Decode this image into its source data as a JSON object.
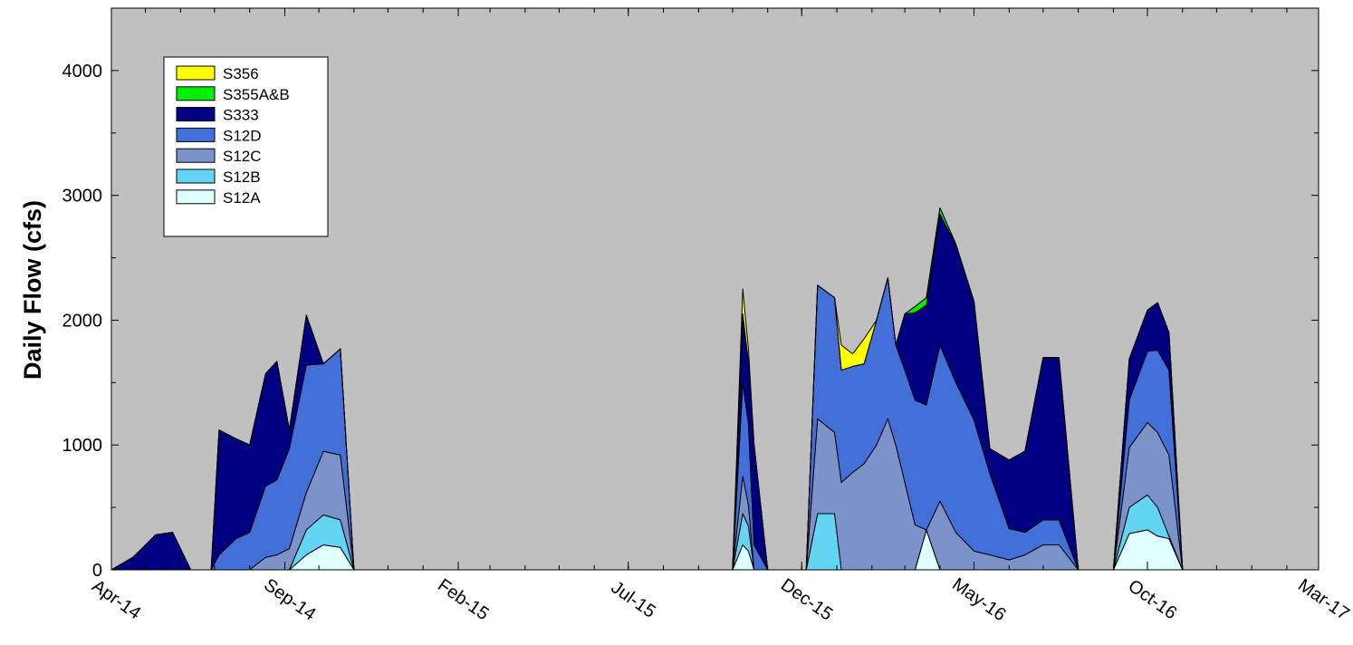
{
  "chart_data": {
    "type": "area",
    "stacked": true,
    "title": "",
    "xlabel": "",
    "ylabel": "Daily Flow (cfs)",
    "x_tick_labels": [
      "Apr-14",
      "Sep-14",
      "Feb-15",
      "Jul-15",
      "Dec-15",
      "May-16",
      "Oct-16",
      "Mar-17"
    ],
    "x_tick_dates": [
      "2014-04-01",
      "2014-09-01",
      "2015-02-01",
      "2015-07-01",
      "2015-12-01",
      "2016-05-01",
      "2016-10-01",
      "2017-03-01"
    ],
    "xlim": [
      "2014-04-01",
      "2017-03-01"
    ],
    "ylim": [
      0,
      4500
    ],
    "y_ticks": [
      0,
      1000,
      2000,
      3000,
      4000
    ],
    "grid": false,
    "legend_placement": "top-left",
    "background_color": "#c0c0c0",
    "x": [
      "2014-04-01",
      "2014-04-20",
      "2014-05-10",
      "2014-05-25",
      "2014-06-10",
      "2014-06-20",
      "2014-06-28",
      "2014-07-05",
      "2014-07-20",
      "2014-08-01",
      "2014-08-15",
      "2014-08-25",
      "2014-09-05",
      "2014-09-20",
      "2014-10-05",
      "2014-10-20",
      "2014-11-01",
      "2014-11-10",
      "2014-11-20",
      "2014-11-28",
      "2014-12-10",
      "2014-12-20",
      "2015-01-01",
      "2015-01-15",
      "2015-02-01",
      "2015-02-15",
      "2015-03-01",
      "2015-03-15",
      "2015-05-15",
      "2015-06-15",
      "2015-07-20",
      "2015-08-15",
      "2015-09-10",
      "2015-09-13",
      "2015-09-16",
      "2015-09-20",
      "2015-09-25",
      "2015-10-01",
      "2015-10-10",
      "2015-10-15",
      "2015-10-20",
      "2015-11-01",
      "2015-11-10",
      "2015-11-20",
      "2015-11-28",
      "2015-12-05",
      "2015-12-15",
      "2015-12-30",
      "2016-01-05",
      "2016-01-15",
      "2016-01-25",
      "2016-02-05",
      "2016-02-15",
      "2016-02-22",
      "2016-03-01",
      "2016-03-10",
      "2016-03-20",
      "2016-04-01",
      "2016-04-15",
      "2016-05-01",
      "2016-05-15",
      "2016-06-01",
      "2016-06-15",
      "2016-07-01",
      "2016-07-15",
      "2016-08-01",
      "2016-08-05",
      "2016-08-10",
      "2016-08-20",
      "2016-09-01",
      "2016-09-15",
      "2016-10-01",
      "2016-10-10",
      "2016-10-20",
      "2016-11-01",
      "2016-11-10",
      "2016-11-20",
      "2016-11-25",
      "2016-12-10",
      "2016-12-25",
      "2017-01-15",
      "2017-01-25",
      "2017-02-10",
      "2017-02-20",
      "2017-03-01"
    ],
    "series": [
      {
        "name": "S12A",
        "color": "#ddffff",
        "values": [
          0,
          0,
          0,
          0,
          0,
          0,
          0,
          0,
          0,
          0,
          0,
          0,
          0,
          120,
          200,
          180,
          0,
          0,
          0,
          0,
          0,
          0,
          0,
          0,
          0,
          0,
          0,
          0,
          0,
          0,
          0,
          0,
          0,
          0,
          0,
          0,
          0,
          0,
          200,
          150,
          0,
          0,
          0,
          0,
          0,
          0,
          0,
          0,
          0,
          0,
          0,
          0,
          0,
          0,
          0,
          0,
          320,
          0,
          0,
          0,
          0,
          0,
          0,
          0,
          0,
          0,
          0,
          0,
          0,
          0,
          290,
          320,
          270,
          250,
          0,
          0,
          0,
          0,
          0,
          0,
          0,
          0,
          0,
          0,
          0
        ]
      },
      {
        "name": "S12B",
        "color": "#64d4f4",
        "values": [
          0,
          0,
          0,
          0,
          0,
          0,
          0,
          0,
          0,
          0,
          0,
          0,
          0,
          200,
          240,
          220,
          0,
          0,
          0,
          0,
          0,
          0,
          0,
          0,
          0,
          0,
          0,
          0,
          0,
          0,
          0,
          0,
          0,
          0,
          0,
          0,
          0,
          0,
          250,
          200,
          0,
          0,
          0,
          0,
          0,
          0,
          450,
          450,
          0,
          0,
          0,
          0,
          0,
          0,
          0,
          0,
          0,
          0,
          0,
          0,
          0,
          0,
          0,
          0,
          0,
          0,
          0,
          0,
          0,
          0,
          210,
          280,
          230,
          20,
          0,
          0,
          0,
          0,
          0,
          0,
          0,
          0,
          0,
          0,
          0
        ]
      },
      {
        "name": "S12C",
        "color": "#7b93c8",
        "values": [
          0,
          0,
          0,
          0,
          0,
          0,
          0,
          0,
          0,
          0,
          100,
          120,
          170,
          300,
          510,
          520,
          0,
          0,
          0,
          0,
          0,
          0,
          0,
          0,
          0,
          0,
          0,
          0,
          0,
          0,
          0,
          0,
          0,
          0,
          0,
          0,
          0,
          0,
          300,
          170,
          0,
          0,
          0,
          0,
          0,
          0,
          760,
          650,
          700,
          780,
          850,
          1000,
          1210,
          1000,
          700,
          360,
          0,
          550,
          300,
          150,
          120,
          80,
          120,
          200,
          200,
          0,
          0,
          0,
          0,
          0,
          480,
          580,
          600,
          650,
          0,
          0,
          0,
          0,
          0,
          0,
          0,
          0,
          0,
          0,
          0
        ]
      },
      {
        "name": "S12D",
        "color": "#4370d8",
        "values": [
          0,
          0,
          0,
          0,
          0,
          0,
          0,
          120,
          250,
          300,
          570,
          600,
          800,
          1020,
          700,
          850,
          0,
          0,
          0,
          0,
          0,
          0,
          0,
          0,
          0,
          0,
          0,
          0,
          0,
          0,
          0,
          0,
          0,
          0,
          0,
          0,
          0,
          0,
          750,
          650,
          200,
          0,
          0,
          0,
          0,
          0,
          1070,
          1080,
          900,
          850,
          800,
          1000,
          1130,
          800,
          900,
          1000,
          1000,
          1250,
          1200,
          1050,
          650,
          250,
          180,
          200,
          200,
          0,
          0,
          0,
          0,
          0,
          380,
          570,
          660,
          680,
          0,
          0,
          0,
          0,
          0,
          0,
          0,
          0,
          0,
          0,
          0
        ]
      },
      {
        "name": "S333",
        "color": "#000080",
        "values": [
          0,
          100,
          280,
          300,
          0,
          0,
          0,
          1000,
          800,
          700,
          900,
          950,
          150,
          400,
          0,
          0,
          0,
          0,
          0,
          0,
          0,
          0,
          0,
          0,
          0,
          0,
          0,
          0,
          0,
          0,
          0,
          0,
          0,
          0,
          0,
          0,
          0,
          0,
          550,
          500,
          800,
          0,
          0,
          0,
          0,
          0,
          0,
          0,
          0,
          0,
          0,
          0,
          0,
          0,
          450,
          700,
          800,
          1050,
          1100,
          950,
          200,
          550,
          650,
          1300,
          1300,
          0,
          0,
          0,
          0,
          0,
          330,
          330,
          380,
          300,
          0,
          0,
          0,
          0,
          0,
          0,
          0,
          0,
          0,
          0,
          0
        ]
      },
      {
        "name": "S355A&B",
        "color": "#00ee00",
        "values": [
          0,
          0,
          0,
          0,
          0,
          0,
          0,
          0,
          0,
          0,
          0,
          0,
          0,
          0,
          0,
          0,
          0,
          0,
          0,
          0,
          0,
          0,
          0,
          0,
          0,
          0,
          0,
          0,
          0,
          0,
          0,
          0,
          0,
          0,
          0,
          0,
          0,
          0,
          0,
          0,
          0,
          0,
          0,
          0,
          0,
          0,
          0,
          0,
          0,
          0,
          0,
          0,
          0,
          0,
          0,
          50,
          60,
          50,
          10,
          0,
          0,
          0,
          0,
          0,
          0,
          0,
          0,
          0,
          0,
          0,
          0,
          0,
          0,
          0,
          0,
          0,
          0,
          0,
          0,
          0,
          0,
          0,
          0,
          0,
          0
        ]
      },
      {
        "name": "S356",
        "color": "#ffff00",
        "values": [
          0,
          0,
          0,
          0,
          0,
          0,
          0,
          0,
          0,
          0,
          0,
          0,
          0,
          0,
          0,
          0,
          0,
          0,
          0,
          0,
          0,
          0,
          0,
          0,
          0,
          0,
          0,
          0,
          0,
          0,
          0,
          0,
          0,
          0,
          0,
          0,
          0,
          0,
          200,
          100,
          0,
          0,
          0,
          0,
          0,
          0,
          0,
          0,
          200,
          100,
          200,
          0,
          0,
          0,
          0,
          0,
          0,
          0,
          0,
          0,
          0,
          0,
          0,
          0,
          0,
          0,
          0,
          0,
          0,
          0,
          0,
          0,
          0,
          0,
          0,
          0,
          0,
          0,
          0,
          0,
          0,
          0,
          0,
          0,
          0
        ]
      }
    ],
    "totals_note": "",
    "legend_order": [
      "S356",
      "S355A&B",
      "S333",
      "S12D",
      "S12C",
      "S12B",
      "S12A"
    ]
  }
}
